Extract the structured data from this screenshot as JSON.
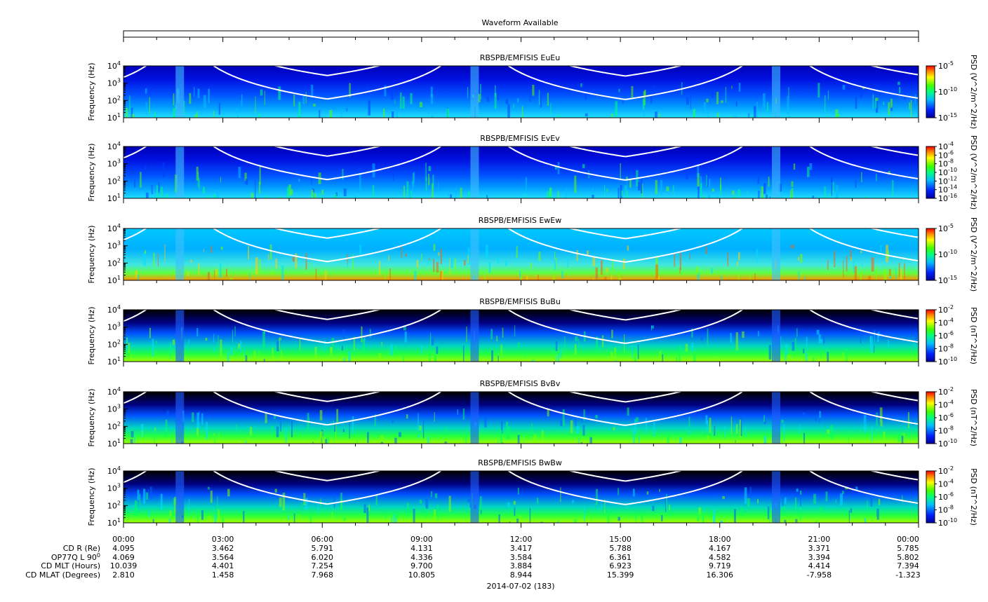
{
  "waveform": {
    "title": "Waveform Available",
    "legend": [
      {
        "label": "",
        "color": "#00ee00"
      },
      {
        "label": "",
        "color": "#0000ff"
      },
      {
        "label": "",
        "color": "#ff0000"
      }
    ]
  },
  "panels": [
    {
      "title": "RBSPB/EMFISIS  EuEu",
      "ylabel": "Frequency (Hz)",
      "cb_label": "PSD (V^2/m^2/Hz)",
      "cb_ticks": [
        "10",
        "10",
        "10"
      ],
      "cb_exps": [
        "-5",
        "-10",
        "-15"
      ],
      "bg": "dark-blue"
    },
    {
      "title": "RBSPB/EMFISIS  EvEv",
      "ylabel": "Frequency (Hz)",
      "cb_label": "PSD (V^2/m^2/Hz)",
      "cb_ticks": [
        "10",
        "10",
        "10",
        "10",
        "10",
        "10",
        "10"
      ],
      "cb_exps": [
        "-4",
        "-6",
        "-8",
        "-10",
        "-12",
        "-14",
        "-16"
      ],
      "bg": "dark-blue"
    },
    {
      "title": "RBSPB/EMFISIS  EwEw",
      "ylabel": "Frequency (Hz)",
      "cb_label": "PSD (V^2/m^2/Hz)",
      "cb_ticks": [
        "10",
        "10",
        "10"
      ],
      "cb_exps": [
        "-5",
        "-10",
        "-15"
      ],
      "bg": "light-blue"
    },
    {
      "title": "RBSPB/EMFISIS  BuBu",
      "ylabel": "Frequency (Hz)",
      "cb_label": "PSD (nT^2/Hz)",
      "cb_ticks": [
        "10",
        "10",
        "10",
        "10",
        "10"
      ],
      "cb_exps": [
        "-2",
        "-4",
        "-6",
        "-8",
        "-10"
      ],
      "bg": "black"
    },
    {
      "title": "RBSPB/EMFISIS  BvBv",
      "ylabel": "Frequency (Hz)",
      "cb_label": "PSD (nT^2/Hz)",
      "cb_ticks": [
        "10",
        "10",
        "10",
        "10",
        "10"
      ],
      "cb_exps": [
        "-2",
        "-4",
        "-6",
        "-8",
        "-10"
      ],
      "bg": "black"
    },
    {
      "title": "RBSPB/EMFISIS  BwBw",
      "ylabel": "Frequency (Hz)",
      "cb_label": "PSD (nT^2/Hz)",
      "cb_ticks": [
        "10",
        "10",
        "10",
        "10",
        "10"
      ],
      "cb_exps": [
        "-2",
        "-4",
        "-6",
        "-8",
        "-10"
      ],
      "bg": "black"
    }
  ],
  "yticks": {
    "base": "10",
    "exps": [
      "4",
      "3",
      "2",
      "1"
    ]
  },
  "chart_data": {
    "type": "heatmap",
    "title": "",
    "xlabel": "2014-07-02 (183)",
    "ylabel": "Frequency (Hz)",
    "x_ticks": [
      "00:00",
      "03:00",
      "06:00",
      "09:00",
      "12:00",
      "15:00",
      "18:00",
      "21:00",
      "00:00"
    ],
    "x_range_hours": [
      0,
      24
    ],
    "ylim": [
      10,
      10000
    ],
    "y_scale": "log",
    "colormap": "rainbow",
    "series": [
      {
        "name": "RBSPB/EMFISIS  EuEu",
        "clim_exp": [
          -15,
          -5
        ]
      },
      {
        "name": "RBSPB/EMFISIS  EvEv",
        "clim_exp": [
          -16,
          -4
        ]
      },
      {
        "name": "RBSPB/EMFISIS  EwEw",
        "clim_exp": [
          -15,
          -5
        ]
      },
      {
        "name": "RBSPB/EMFISIS  BuBu",
        "clim_exp": [
          -10,
          -2
        ]
      },
      {
        "name": "RBSPB/EMFISIS  BvBv",
        "clim_exp": [
          -10,
          -2
        ]
      },
      {
        "name": "RBSPB/EMFISIS  BwBw",
        "clim_exp": [
          -10,
          -2
        ]
      }
    ],
    "overlay_curves": {
      "color": "#ffffff",
      "perigee_hours": [
        1.7,
        10.6,
        19.7
      ],
      "upper_min_hz": 2500,
      "lower_min_hz": 110
    }
  },
  "ephemeris": [
    {
      "label": "CD R (Re)",
      "values": [
        "4.095",
        "3.462",
        "5.791",
        "4.131",
        "3.417",
        "5.788",
        "4.167",
        "3.371",
        "5.785"
      ]
    },
    {
      "label": "OP77Q L 90",
      "label_sup": "0",
      "values": [
        "4.069",
        "3.564",
        "6.020",
        "4.336",
        "3.584",
        "6.361",
        "4.582",
        "3.394",
        "5.802"
      ]
    },
    {
      "label": "CD MLT (Hours)",
      "values": [
        "10.039",
        "4.401",
        "7.254",
        "9.700",
        "3.884",
        "6.923",
        "9.719",
        "4.414",
        "7.394"
      ]
    },
    {
      "label": "CD MLAT (Degrees)",
      "values": [
        "2.810",
        "1.458",
        "7.968",
        "10.805",
        "8.944",
        "15.399",
        "16.306",
        "-7.958",
        "-1.323"
      ]
    }
  ]
}
